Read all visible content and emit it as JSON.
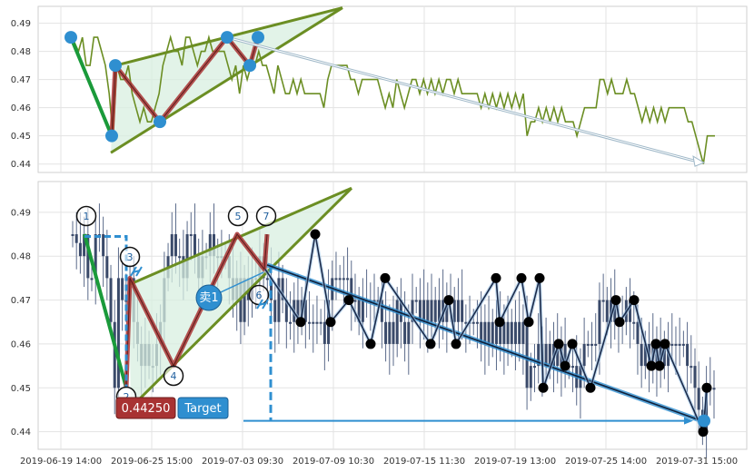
{
  "chart_data": [
    {
      "type": "line",
      "panel": "top",
      "ylim": [
        0.437,
        0.496
      ],
      "y_ticks": [
        "0.44",
        "0.45",
        "0.46",
        "0.47",
        "0.48",
        "0.49"
      ],
      "y_tick_values": [
        0.44,
        0.45,
        0.46,
        0.47,
        0.48,
        0.49
      ],
      "grid": true,
      "colors": {
        "price_line": "#6b8e23",
        "pattern_fill": "#d8efe0",
        "pattern_edge": "#6b8e23",
        "zigzag": "#a83232",
        "pivot": "#2f8fd0",
        "first_leg": "#1a9a3a",
        "projection_arrow": "#9fb8c8"
      },
      "series": [
        {
          "values": [
            0.485,
            0.483,
            0.48,
            0.485,
            0.475,
            0.475,
            0.485,
            0.485,
            0.48,
            0.475,
            0.465,
            0.45,
            0.475,
            0.47,
            0.47,
            0.475,
            0.465,
            0.46,
            0.455,
            0.46,
            0.455,
            0.455,
            0.46,
            0.465,
            0.475,
            0.48,
            0.485,
            0.48,
            0.48,
            0.475,
            0.485,
            0.485,
            0.48,
            0.475,
            0.48,
            0.48,
            0.485,
            0.48,
            0.48,
            0.48,
            0.48,
            0.475,
            0.47,
            0.475,
            0.465,
            0.475,
            0.47,
            0.475,
            0.475,
            0.48,
            0.475,
            0.475,
            0.47,
            0.465,
            0.475,
            0.47,
            0.465,
            0.465,
            0.47,
            0.465,
            0.47,
            0.465,
            0.465,
            0.465,
            0.465,
            0.465,
            0.46,
            0.47,
            0.475,
            0.475,
            0.475,
            0.475,
            0.475,
            0.47,
            0.47,
            0.465,
            0.47,
            0.47,
            0.47,
            0.47,
            0.47,
            0.465,
            0.46,
            0.465,
            0.46,
            0.47,
            0.465,
            0.46,
            0.465,
            0.47,
            0.47,
            0.465,
            0.47,
            0.465,
            0.47,
            0.465,
            0.47,
            0.465,
            0.47,
            0.47,
            0.465,
            0.47,
            0.465,
            0.465,
            0.465,
            0.465,
            0.465,
            0.46,
            0.465,
            0.46,
            0.465,
            0.46,
            0.465,
            0.46,
            0.465,
            0.46,
            0.465,
            0.46,
            0.465,
            0.45,
            0.455,
            0.455,
            0.46,
            0.455,
            0.46,
            0.455,
            0.46,
            0.455,
            0.46,
            0.455,
            0.455,
            0.455,
            0.45,
            0.455,
            0.46,
            0.46,
            0.46,
            0.46,
            0.47,
            0.47,
            0.465,
            0.47,
            0.465,
            0.465,
            0.465,
            0.47,
            0.465,
            0.465,
            0.46,
            0.455,
            0.46,
            0.455,
            0.46,
            0.455,
            0.46,
            0.455,
            0.46,
            0.46,
            0.46,
            0.46,
            0.46,
            0.455,
            0.455,
            0.45,
            0.445,
            0.44,
            0.45,
            0.45,
            0.45
          ]
        }
      ],
      "pivots": [
        0.485,
        0.45,
        0.475,
        0.455,
        0.485,
        0.475,
        0.485
      ]
    },
    {
      "type": "line",
      "panel": "bottom",
      "x_ticks": [
        "2019-06-19 14:00",
        "2019-06-25 15:00",
        "2019-07-03 09:30",
        "2019-07-09 10:30",
        "2019-07-15 11:30",
        "2019-07-19 13:00",
        "2019-07-25 14:00",
        "2019-07-31 15:00"
      ],
      "ylim": [
        0.436,
        0.497
      ],
      "y_ticks": [
        "0.44",
        "0.45",
        "0.46",
        "0.47",
        "0.48",
        "0.49"
      ],
      "y_tick_values": [
        0.44,
        0.45,
        0.46,
        0.47,
        0.48,
        0.49
      ],
      "grid": true,
      "colors": {
        "candle": "#3a4a6a",
        "zigzag": "#a83232",
        "pattern_fill": "#d8efe0",
        "pattern_edge": "#6b8e23",
        "first_leg": "#1a9a3a",
        "blue_line": "#2f8fd0",
        "dark_path": "#1a2a4a",
        "black_dot": "#000000",
        "target_badge": "#2f8fd0",
        "price_badge": "#a83232"
      },
      "pivot_values": [
        0.485,
        0.45,
        0.475,
        0.455,
        0.485,
        0.477,
        0.485
      ],
      "pivot_labels": [
        "1",
        "2",
        "3",
        "4",
        "5",
        "6",
        "7"
      ],
      "dark_path_values": [
        0.477,
        0.465,
        0.485,
        0.465,
        0.47,
        0.46,
        0.475,
        0.46,
        0.47,
        0.46,
        0.475,
        0.465,
        0.475,
        0.465,
        0.475,
        0.45,
        0.46,
        0.455,
        0.46,
        0.45,
        0.47,
        0.465,
        0.47,
        0.455,
        0.46,
        0.455,
        0.46,
        0.44,
        0.45
      ],
      "sell_label": "卖1",
      "price_badge": "0.44250",
      "target_badge": "Target",
      "target_value": 0.4425
    }
  ]
}
